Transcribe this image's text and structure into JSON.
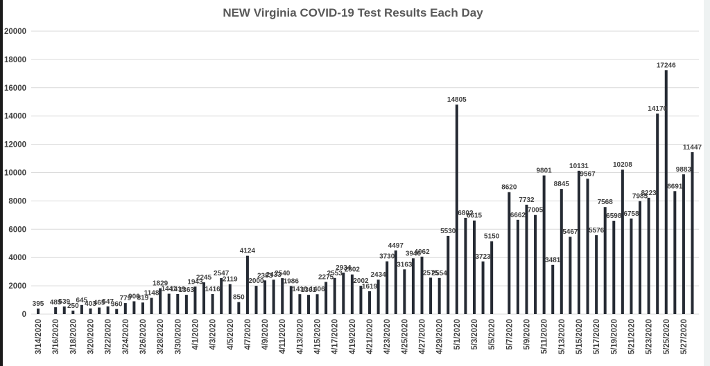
{
  "chart_data": {
    "type": "bar",
    "title": "NEW Virginia COVID-19 Test Results Each Day",
    "xlabel": "",
    "ylabel": "",
    "ylim": [
      0,
      20000
    ],
    "yticks": [
      0,
      2000,
      4000,
      6000,
      8000,
      10000,
      12000,
      14000,
      16000,
      18000,
      20000
    ],
    "grid": true,
    "bar_color": "#252a33",
    "categories": [
      "3/14/2020",
      "3/15/2020",
      "3/16/2020",
      "3/17/2020",
      "3/18/2020",
      "3/19/2020",
      "3/20/2020",
      "3/21/2020",
      "3/22/2020",
      "3/23/2020",
      "3/24/2020",
      "3/25/2020",
      "3/26/2020",
      "3/27/2020",
      "3/28/2020",
      "3/29/2020",
      "3/30/2020",
      "3/31/2020",
      "4/1/2020",
      "4/2/2020",
      "4/3/2020",
      "4/4/2020",
      "4/5/2020",
      "4/6/2020",
      "4/7/2020",
      "4/8/2020",
      "4/9/2020",
      "4/10/2020",
      "4/11/2020",
      "4/12/2020",
      "4/13/2020",
      "4/14/2020",
      "4/15/2020",
      "4/16/2020",
      "4/17/2020",
      "4/18/2020",
      "4/19/2020",
      "4/20/2020",
      "4/21/2020",
      "4/22/2020",
      "4/23/2020",
      "4/24/2020",
      "4/25/2020",
      "4/26/2020",
      "4/27/2020",
      "4/28/2020",
      "4/29/2020",
      "4/30/2020",
      "5/1/2020",
      "5/2/2020",
      "5/3/2020",
      "5/4/2020",
      "5/5/2020",
      "5/6/2020",
      "5/7/2020",
      "5/8/2020",
      "5/9/2020",
      "5/10/2020",
      "5/11/2020",
      "5/12/2020",
      "5/13/2020",
      "5/14/2020",
      "5/15/2020",
      "5/16/2020",
      "5/17/2020",
      "5/18/2020",
      "5/19/2020",
      "5/20/2020",
      "5/21/2020",
      "5/22/2020",
      "5/23/2020",
      "5/24/2020",
      "5/25/2020",
      "5/26/2020",
      "5/27/2020",
      "5/28/2020"
    ],
    "tick_labels": [
      "3/14/2020",
      "3/16/2020",
      "3/18/2020",
      "3/20/2020",
      "3/22/2020",
      "3/24/2020",
      "3/26/2020",
      "3/28/2020",
      "3/30/2020",
      "4/1/2020",
      "4/3/2020",
      "4/5/2020",
      "4/7/2020",
      "4/9/2020",
      "4/11/2020",
      "4/13/2020",
      "4/15/2020",
      "4/17/2020",
      "4/19/2020",
      "4/21/2020",
      "4/23/2020",
      "4/25/2020",
      "4/27/2020",
      "4/29/2020",
      "5/1/2020",
      "5/3/2020",
      "5/5/2020",
      "5/7/2020",
      "5/9/2020",
      "5/11/2020",
      "5/13/2020",
      "5/15/2020",
      "5/17/2020",
      "5/19/2020",
      "5/21/2020",
      "5/23/2020",
      "5/25/2020",
      "5/27/2020"
    ],
    "values": [
      395,
      null,
      485,
      539,
      250,
      645,
      403,
      465,
      547,
      360,
      779,
      906,
      819,
      1148,
      1829,
      1441,
      1419,
      1363,
      1943,
      2245,
      1416,
      2547,
      2119,
      850,
      4124,
      2000,
      2383,
      2433,
      2540,
      1986,
      1410,
      1361,
      1406,
      2275,
      2553,
      2934,
      2802,
      2002,
      1619,
      2434,
      3730,
      4497,
      3163,
      3946,
      4062,
      2575,
      2554,
      5530,
      14805,
      6802,
      6615,
      3723,
      5150,
      null,
      8620,
      6662,
      7732,
      7005,
      9801,
      3481,
      8845,
      5467,
      10131,
      9567,
      5576,
      7568,
      6598,
      10208,
      6758,
      7985,
      8223,
      14170,
      17246,
      8691,
      9883,
      11447
    ]
  }
}
